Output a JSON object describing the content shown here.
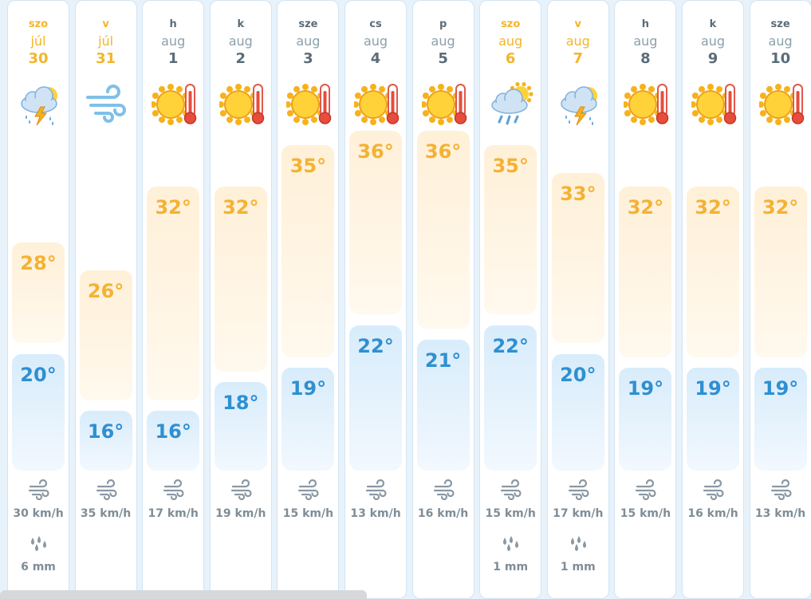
{
  "days": [
    {
      "dow": "szo",
      "month": "júl",
      "day": "30",
      "icon": "thunderstorm-icon",
      "hi": "28°",
      "hi_val": 28,
      "lo": "20°",
      "lo_val": 20,
      "wind": "30 km/h",
      "rain": "6 mm",
      "weekend": true
    },
    {
      "dow": "v",
      "month": "júl",
      "day": "31",
      "icon": "wind-icon",
      "hi": "26°",
      "hi_val": 26,
      "lo": "16°",
      "lo_val": 16,
      "wind": "35 km/h",
      "rain": "",
      "weekend": true
    },
    {
      "dow": "h",
      "month": "aug",
      "day": "1",
      "icon": "hot-sun-icon",
      "hi": "32°",
      "hi_val": 32,
      "lo": "16°",
      "lo_val": 16,
      "wind": "17 km/h",
      "rain": "",
      "weekend": false
    },
    {
      "dow": "k",
      "month": "aug",
      "day": "2",
      "icon": "hot-sun-icon",
      "hi": "32°",
      "hi_val": 32,
      "lo": "18°",
      "lo_val": 18,
      "wind": "19 km/h",
      "rain": "",
      "weekend": false
    },
    {
      "dow": "sze",
      "month": "aug",
      "day": "3",
      "icon": "hot-sun-icon",
      "hi": "35°",
      "hi_val": 35,
      "lo": "19°",
      "lo_val": 19,
      "wind": "15 km/h",
      "rain": "",
      "weekend": false
    },
    {
      "dow": "cs",
      "month": "aug",
      "day": "4",
      "icon": "hot-sun-icon",
      "hi": "36°",
      "hi_val": 36,
      "lo": "22°",
      "lo_val": 22,
      "wind": "13 km/h",
      "rain": "",
      "weekend": false
    },
    {
      "dow": "p",
      "month": "aug",
      "day": "5",
      "icon": "hot-sun-icon",
      "hi": "36°",
      "hi_val": 36,
      "lo": "21°",
      "lo_val": 21,
      "wind": "16 km/h",
      "rain": "",
      "weekend": false
    },
    {
      "dow": "szo",
      "month": "aug",
      "day": "6",
      "icon": "sun-rain-cloud-icon",
      "hi": "35°",
      "hi_val": 35,
      "lo": "22°",
      "lo_val": 22,
      "wind": "15 km/h",
      "rain": "1 mm",
      "weekend": true
    },
    {
      "dow": "v",
      "month": "aug",
      "day": "7",
      "icon": "thunderstorm-icon",
      "hi": "33°",
      "hi_val": 33,
      "lo": "20°",
      "lo_val": 20,
      "wind": "17 km/h",
      "rain": "1 mm",
      "weekend": true
    },
    {
      "dow": "h",
      "month": "aug",
      "day": "8",
      "icon": "hot-sun-icon",
      "hi": "32°",
      "hi_val": 32,
      "lo": "19°",
      "lo_val": 19,
      "wind": "15 km/h",
      "rain": "",
      "weekend": false
    },
    {
      "dow": "k",
      "month": "aug",
      "day": "9",
      "icon": "hot-sun-icon",
      "hi": "32°",
      "hi_val": 32,
      "lo": "19°",
      "lo_val": 19,
      "wind": "16 km/h",
      "rain": "",
      "weekend": false
    },
    {
      "dow": "sze",
      "month": "aug",
      "day": "10",
      "icon": "hot-sun-icon",
      "hi": "32°",
      "hi_val": 32,
      "lo": "19°",
      "lo_val": 19,
      "wind": "13 km/h",
      "rain": "",
      "weekend": false
    }
  ],
  "colors": {
    "weekend": "#f3b52b",
    "high": "#f4b233",
    "low": "#2e90d2"
  }
}
